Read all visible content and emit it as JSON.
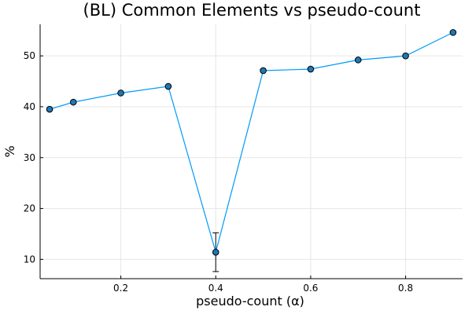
{
  "chart_data": {
    "type": "scatter",
    "title": "(BL) Common Elements vs pseudo-count",
    "xlabel": "pseudo-count (α)",
    "ylabel": "%",
    "xlim": [
      0.03,
      0.92
    ],
    "ylim": [
      6.2,
      56.2
    ],
    "x_ticks": [
      0.2,
      0.4,
      0.6,
      0.8
    ],
    "x_tick_labels": [
      "0.2",
      "0.4",
      "0.6",
      "0.8"
    ],
    "y_ticks": [
      10,
      20,
      30,
      40,
      50
    ],
    "y_tick_labels": [
      "10",
      "20",
      "30",
      "40",
      "50"
    ],
    "grid": true,
    "legend": false,
    "series": [
      {
        "line_color": "#009af9",
        "marker_color": "#1f77b4",
        "points": [
          {
            "x": 0.05,
            "y": 39.5
          },
          {
            "x": 0.1,
            "y": 40.9
          },
          {
            "x": 0.2,
            "y": 42.7
          },
          {
            "x": 0.3,
            "y": 44.0
          },
          {
            "x": 0.4,
            "y": 11.4,
            "err": 3.8
          },
          {
            "x": 0.5,
            "y": 47.1
          },
          {
            "x": 0.6,
            "y": 47.4
          },
          {
            "x": 0.7,
            "y": 49.2
          },
          {
            "x": 0.8,
            "y": 50.0
          },
          {
            "x": 0.9,
            "y": 54.6
          }
        ]
      }
    ]
  }
}
